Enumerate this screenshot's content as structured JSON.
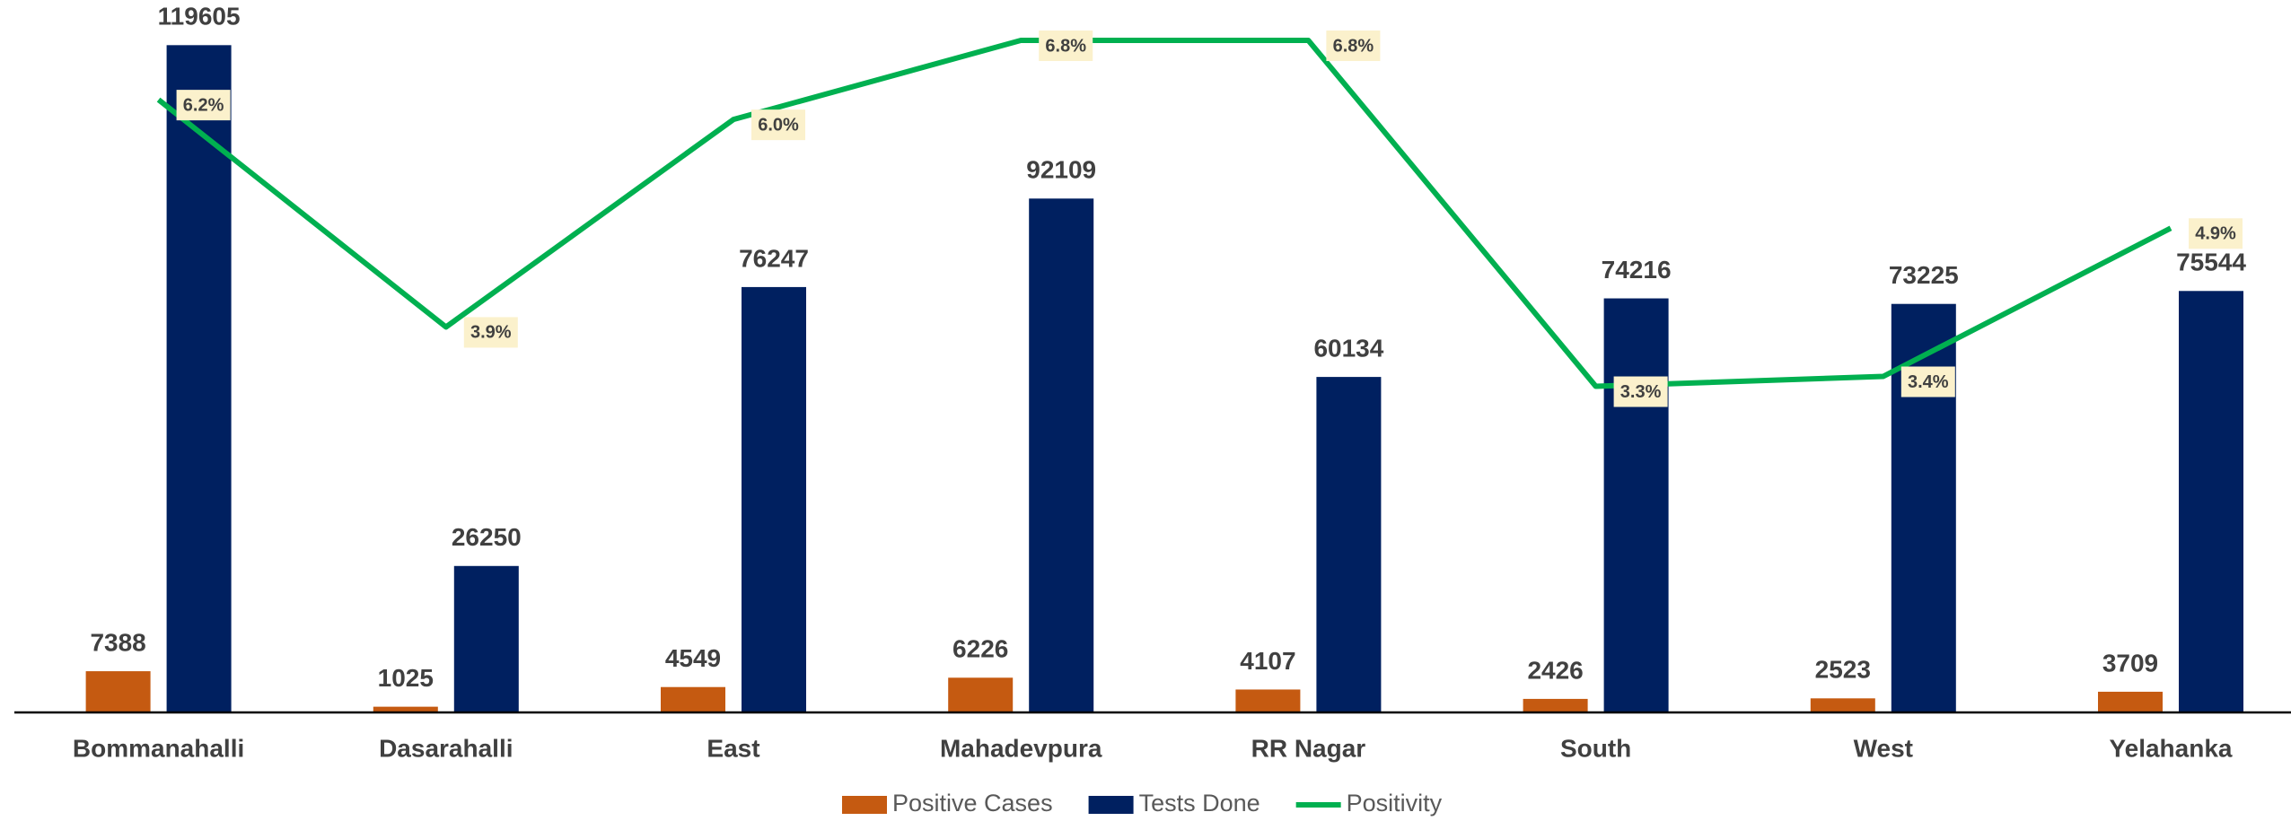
{
  "chart_data": {
    "type": "bar_line",
    "categories": [
      "Bommanahalli",
      "Dasarahalli",
      "East",
      "Mahadevpura",
      "RR Nagar",
      "South",
      "West",
      "Yelahanka"
    ],
    "series": [
      {
        "name": "Positive Cases",
        "type": "bar",
        "color": "#c55a11",
        "values": [
          7388,
          1025,
          4549,
          6226,
          4107,
          2426,
          2523,
          3709
        ]
      },
      {
        "name": "Tests Done",
        "type": "bar",
        "color": "#002060",
        "values": [
          119605,
          26250,
          76247,
          92109,
          60134,
          74216,
          73225,
          75544
        ]
      },
      {
        "name": "Positivity",
        "type": "line",
        "axis": "y2",
        "color": "#00b050",
        "values": [
          6.2,
          3.9,
          6.0,
          6.8,
          6.8,
          3.3,
          3.4,
          4.9
        ],
        "value_labels": [
          "6.2%",
          "3.9%",
          "6.0%",
          "6.8%",
          "6.8%",
          "3.3%",
          "3.4%",
          "4.9%"
        ]
      }
    ],
    "ylim": [
      0,
      124000
    ],
    "y2lim": [
      0,
      7
    ],
    "legend": "bottom"
  }
}
